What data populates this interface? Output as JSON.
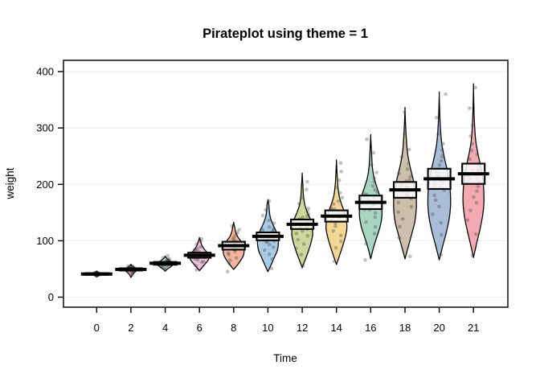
{
  "title": "Pirateplot using theme = 1",
  "x_axis_label": "Time",
  "y_axis_label": "weight",
  "chart_data": {
    "type": "pirateplot (violin/bean + jittered points + 95% band + mean line)",
    "title": "Pirateplot using theme = 1",
    "xlabel": "Time",
    "ylabel": "weight",
    "ylim": [
      0,
      400
    ],
    "y_ticks": [
      0,
      100,
      200,
      300,
      400
    ],
    "x_tick_labels": [
      "0",
      "2",
      "4",
      "6",
      "8",
      "10",
      "12",
      "14",
      "16",
      "18",
      "20",
      "21"
    ],
    "grid": true,
    "grid_color": "#ebebeb",
    "legend": "none",
    "point_color": "rgba(64,64,64,0.33)",
    "band_fill": "rgba(255,255,255,0.82)",
    "mean_line_color": "#000000",
    "series": [
      {
        "label": "0",
        "color": "#aabcd8",
        "mean": 41.1,
        "band": [
          39.5,
          42.6
        ],
        "wmax": 5,
        "density_v": [
          36,
          38.5,
          41,
          43.5,
          46
        ],
        "density_w": [
          0,
          0.6,
          1,
          0.6,
          0
        ],
        "points": [
          39,
          40,
          40,
          41,
          41,
          41,
          41,
          42,
          42,
          42,
          41,
          40,
          41,
          42,
          43,
          41,
          40,
          41,
          42,
          41,
          41,
          40,
          42,
          41,
          43,
          39,
          41,
          42,
          40,
          41
        ]
      },
      {
        "label": "2",
        "color": "#f0a9b2",
        "mean": 49.2,
        "band": [
          47.2,
          51.2
        ],
        "wmax": 7,
        "density_v": [
          35,
          38,
          42,
          46,
          49,
          52,
          55,
          58
        ],
        "density_w": [
          0,
          0.15,
          0.45,
          0.9,
          1,
          0.65,
          0.3,
          0
        ],
        "points": [
          39,
          44,
          46,
          47,
          48,
          48,
          49,
          49,
          50,
          50,
          50,
          51,
          51,
          52,
          52,
          53,
          54,
          55,
          48,
          49,
          50,
          51,
          47,
          46,
          52,
          53,
          49,
          50,
          48,
          55
        ]
      },
      {
        "label": "4",
        "color": "#b3d8bd",
        "mean": 60.0,
        "band": [
          57.5,
          62.5
        ],
        "wmax": 10,
        "density_v": [
          46,
          50,
          54,
          58,
          61,
          64,
          68,
          72
        ],
        "density_w": [
          0,
          0.3,
          0.7,
          1,
          0.9,
          0.6,
          0.25,
          0
        ],
        "points": [
          48,
          51,
          53,
          55,
          56,
          57,
          58,
          58,
          59,
          59,
          60,
          60,
          60,
          61,
          61,
          62,
          62,
          63,
          64,
          65,
          66,
          67,
          68,
          70,
          72,
          59,
          60,
          61,
          58,
          63
        ]
      },
      {
        "label": "6",
        "color": "#ecc2d8",
        "mean": 74.3,
        "band": [
          69.8,
          78.8
        ],
        "wmax": 12,
        "density_v": [
          47,
          53,
          60,
          67,
          73,
          79,
          85,
          92,
          99,
          105
        ],
        "density_w": [
          0,
          0.3,
          0.65,
          0.95,
          1,
          0.8,
          0.5,
          0.25,
          0.12,
          0
        ],
        "points": [
          49,
          57,
          62,
          64,
          66,
          68,
          70,
          71,
          72,
          73,
          74,
          74,
          75,
          76,
          77,
          78,
          79,
          80,
          82,
          84,
          86,
          89,
          93,
          98,
          103,
          72,
          74,
          76,
          70,
          75
        ]
      },
      {
        "label": "8",
        "color": "#f2b69e",
        "mean": 91.2,
        "band": [
          84.2,
          98.2
        ],
        "wmax": 13,
        "density_v": [
          49,
          57,
          66,
          75,
          84,
          92,
          100,
          108,
          116,
          124,
          132
        ],
        "density_w": [
          0,
          0.35,
          0.7,
          0.95,
          1,
          0.9,
          0.65,
          0.35,
          0.18,
          0.1,
          0
        ],
        "points": [
          46,
          59,
          65,
          70,
          74,
          78,
          81,
          84,
          86,
          88,
          90,
          91,
          92,
          94,
          96,
          98,
          100,
          103,
          106,
          110,
          115,
          120,
          127,
          88,
          92,
          90,
          85,
          95,
          89,
          93
        ]
      },
      {
        "label": "10",
        "color": "#a9cbe8",
        "mean": 107.8,
        "band": [
          100.8,
          114.8
        ],
        "wmax": 13,
        "density_v": [
          45,
          57,
          70,
          83,
          95,
          107,
          118,
          130,
          142,
          155,
          165,
          172
        ],
        "density_w": [
          0,
          0.3,
          0.6,
          0.9,
          1,
          0.95,
          0.75,
          0.45,
          0.22,
          0.12,
          0.08,
          0
        ],
        "points": [
          51,
          67,
          75,
          83,
          88,
          93,
          97,
          100,
          103,
          106,
          108,
          110,
          112,
          115,
          118,
          121,
          125,
          130,
          136,
          144,
          155,
          171,
          105,
          110,
          108,
          102,
          113,
          107,
          98,
          120
        ]
      },
      {
        "label": "12",
        "color": "#ccd99b",
        "mean": 129.2,
        "band": [
          120.7,
          137.7
        ],
        "wmax": 13,
        "density_v": [
          52,
          67,
          82,
          97,
          111,
          124,
          137,
          150,
          164,
          180,
          200,
          218
        ],
        "density_w": [
          0,
          0.3,
          0.6,
          0.85,
          1,
          0.95,
          0.8,
          0.5,
          0.25,
          0.12,
          0.06,
          0
        ],
        "points": [
          56,
          76,
          87,
          95,
          102,
          108,
          113,
          118,
          122,
          126,
          129,
          132,
          135,
          139,
          143,
          147,
          152,
          158,
          166,
          176,
          190,
          205,
          127,
          131,
          125,
          136,
          121,
          141,
          129,
          133
        ]
      },
      {
        "label": "14",
        "color": "#f2d795",
        "mean": 143.8,
        "band": [
          133.8,
          153.8
        ],
        "wmax": 13,
        "density_v": [
          58,
          74,
          91,
          107,
          122,
          136,
          150,
          164,
          180,
          200,
          222,
          241
        ],
        "density_w": [
          0,
          0.3,
          0.6,
          0.85,
          1,
          0.95,
          0.78,
          0.5,
          0.25,
          0.12,
          0.05,
          0
        ],
        "points": [
          63,
          87,
          100,
          110,
          118,
          125,
          131,
          136,
          141,
          145,
          148,
          152,
          156,
          160,
          165,
          170,
          176,
          184,
          194,
          207,
          222,
          237,
          142,
          146,
          139,
          150,
          135,
          155,
          144,
          148
        ]
      },
      {
        "label": "16",
        "color": "#a6d5c2",
        "mean": 168.1,
        "band": [
          156.1,
          180.1
        ],
        "wmax": 14,
        "density_v": [
          68,
          88,
          107,
          126,
          144,
          160,
          176,
          192,
          210,
          230,
          258,
          285
        ],
        "density_w": [
          0,
          0.25,
          0.55,
          0.85,
          1,
          0.98,
          0.85,
          0.6,
          0.32,
          0.15,
          0.07,
          0
        ],
        "points": [
          65,
          95,
          112,
          124,
          134,
          142,
          150,
          156,
          162,
          167,
          172,
          176,
          181,
          186,
          191,
          197,
          204,
          212,
          222,
          235,
          255,
          281,
          165,
          170,
          160,
          175,
          155,
          183,
          168,
          172
        ]
      },
      {
        "label": "18",
        "color": "#ccbfab",
        "mean": 190.2,
        "band": [
          176.2,
          204.2
        ],
        "wmax": 14,
        "density_v": [
          68,
          90,
          112,
          134,
          155,
          175,
          195,
          215,
          236,
          260,
          295,
          332
        ],
        "density_w": [
          0,
          0.3,
          0.6,
          0.88,
          1,
          1,
          0.88,
          0.65,
          0.4,
          0.2,
          0.08,
          0
        ],
        "points": [
          73,
          105,
          125,
          139,
          150,
          160,
          168,
          175,
          181,
          187,
          192,
          197,
          202,
          208,
          214,
          220,
          228,
          237,
          248,
          263,
          290,
          327,
          188,
          193,
          183,
          198,
          178,
          205,
          190,
          195
        ]
      },
      {
        "label": "20",
        "color": "#a9bcd8",
        "mean": 209.7,
        "band": [
          191.7,
          227.7
        ],
        "wmax": 14,
        "density_v": [
          66,
          90,
          114,
          138,
          160,
          182,
          204,
          226,
          248,
          273,
          310,
          358
        ],
        "density_w": [
          0,
          0.3,
          0.62,
          0.88,
          1,
          1,
          0.9,
          0.7,
          0.45,
          0.22,
          0.08,
          0
        ],
        "points": [
          76,
          110,
          132,
          148,
          161,
          172,
          181,
          189,
          196,
          203,
          209,
          215,
          221,
          227,
          234,
          241,
          250,
          260,
          273,
          290,
          318,
          361,
          207,
          213,
          202,
          218,
          197,
          225,
          210,
          215
        ]
      },
      {
        "label": "21",
        "color": "#f2a9b2",
        "mean": 218.7,
        "band": [
          200.7,
          236.7
        ],
        "wmax": 13,
        "density_v": [
          70,
          95,
          120,
          145,
          168,
          190,
          212,
          233,
          255,
          280,
          320,
          372
        ],
        "density_w": [
          0,
          0.3,
          0.62,
          0.88,
          1,
          0.98,
          0.88,
          0.68,
          0.42,
          0.2,
          0.07,
          0
        ],
        "points": [
          74,
          112,
          136,
          153,
          167,
          178,
          188,
          196,
          204,
          211,
          217,
          224,
          230,
          237,
          244,
          252,
          261,
          272,
          286,
          305,
          335,
          373,
          215,
          221,
          210,
          226,
          205,
          233,
          218,
          223
        ]
      }
    ]
  }
}
